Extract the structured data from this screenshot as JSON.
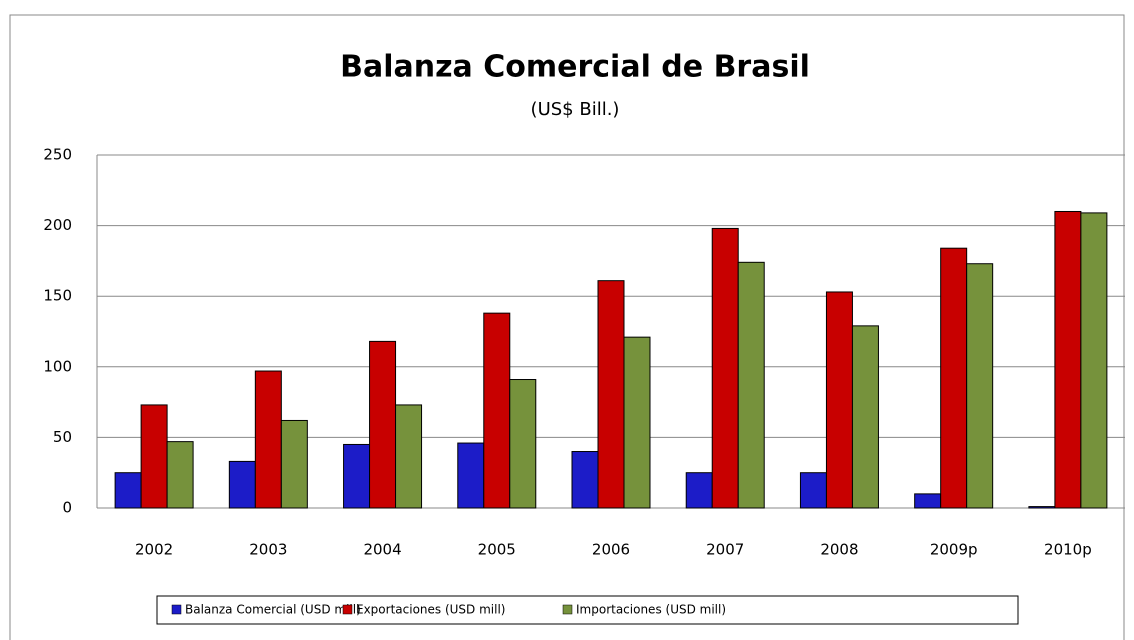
{
  "chart_data": {
    "type": "bar",
    "title": "Balanza Comercial de Brasil",
    "subtitle": "(US$ Bill.)",
    "categories": [
      "2002",
      "2003",
      "2004",
      "2005",
      "2006",
      "2007",
      "2008",
      "2009p",
      "2010p"
    ],
    "series": [
      {
        "name": "Balanza Comercial (USD mill)",
        "color": "#1c1cc8",
        "values": [
          25,
          33,
          45,
          46,
          40,
          25,
          25,
          10,
          1
        ]
      },
      {
        "name": "Exportaciones (USD mill)",
        "color": "#c80000",
        "values": [
          73,
          97,
          118,
          138,
          161,
          198,
          153,
          184,
          210
        ]
      },
      {
        "name": "Importaciones (USD mill)",
        "color": "#76923c",
        "values": [
          47,
          62,
          73,
          91,
          121,
          174,
          129,
          173,
          209
        ]
      }
    ],
    "ylim": [
      0,
      250
    ],
    "yticks": [
      0,
      50,
      100,
      150,
      200,
      250
    ],
    "grid": true,
    "legend": "bottom"
  }
}
